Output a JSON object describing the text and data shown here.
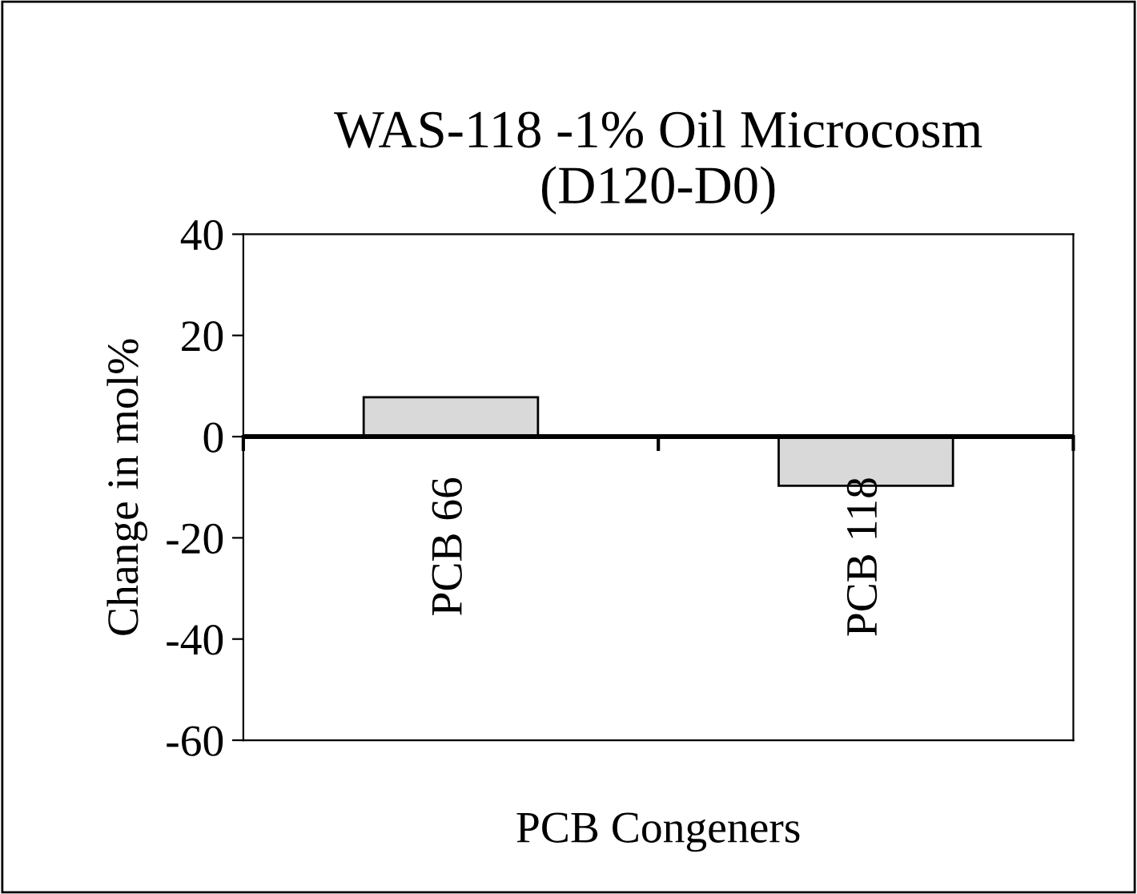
{
  "chart_data": {
    "type": "bar",
    "title": "WAS-118 -1% Oil Microcosm\n(D120-D0)",
    "xlabel": "PCB Congeners",
    "ylabel": "Change in mol%",
    "categories": [
      "PCB 66",
      "PCB 118"
    ],
    "values": [
      7.8,
      -9.7
    ],
    "color": "#d9d9d9",
    "ylim": [
      -60,
      40
    ],
    "yticks": [
      -60,
      -40,
      -20,
      0,
      20,
      40
    ],
    "grid": false
  }
}
